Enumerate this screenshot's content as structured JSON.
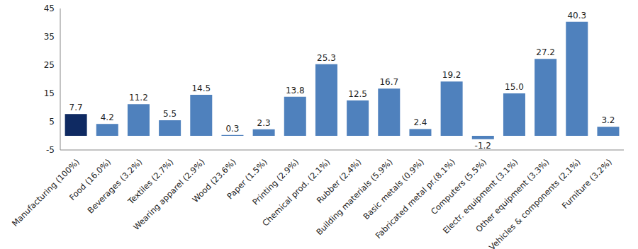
{
  "chart_data": {
    "type": "bar",
    "categories": [
      "Manufacturing (100%)",
      "Food (16.0%)",
      "Beverages (3.2%)",
      "Textiles (2.7%)",
      "Wearing apparel (2.9%)",
      "Wood (23.6%)",
      "Paper (1.5%)",
      "Printing (2.9%)",
      "Chemical prod. (2.1%)",
      "Rubber (2.4%)",
      "Building materials (5.9%)",
      "Basic metals (0.9%)",
      "Fabricated metal pr.(8.1%)",
      "Computers (5.5%)",
      "Electr. equipment (3.1%)",
      "Other equipment (3.3%)",
      "Vehicles & components (2.1%)",
      "Furniture (3.2%)"
    ],
    "values": [
      7.7,
      4.2,
      11.2,
      5.5,
      14.5,
      0.3,
      2.3,
      13.8,
      25.3,
      12.5,
      16.7,
      2.4,
      19.2,
      -1.2,
      15.0,
      27.2,
      40.3,
      3.2
    ],
    "value_labels": [
      "7.7",
      "4.2",
      "11.2",
      "5.5",
      "14.5",
      "0.3",
      "2.3",
      "13.8",
      "25.3",
      "12.5",
      "16.7",
      "2.4",
      "19.2",
      "-1.2",
      "15.0",
      "27.2",
      "40.3",
      "3.2"
    ],
    "colors": [
      "#0f2a62",
      "#4f81bd",
      "#4f81bd",
      "#4f81bd",
      "#4f81bd",
      "#4f81bd",
      "#4f81bd",
      "#4f81bd",
      "#4f81bd",
      "#4f81bd",
      "#4f81bd",
      "#4f81bd",
      "#4f81bd",
      "#4f81bd",
      "#4f81bd",
      "#4f81bd",
      "#4f81bd",
      "#4f81bd"
    ],
    "ylim": [
      -5,
      45
    ],
    "yticks": [
      -5,
      5,
      15,
      25,
      35,
      45
    ],
    "grid": false,
    "data_labels": true
  }
}
